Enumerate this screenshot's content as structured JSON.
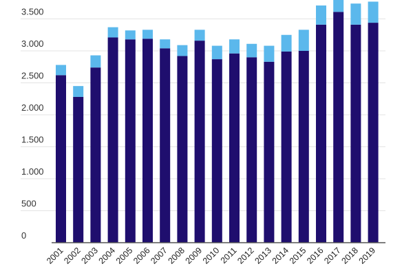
{
  "chart_data": {
    "type": "bar",
    "stacked": true,
    "categories": [
      "2001",
      "2002",
      "2003",
      "2004",
      "2005",
      "2006",
      "2007",
      "2008",
      "2009",
      "2010",
      "2011",
      "2012",
      "2013",
      "2014",
      "2015",
      "2016",
      "2017",
      "2018",
      "2019"
    ],
    "series": [
      {
        "values": [
          2620,
          2280,
          2740,
          3210,
          3180,
          3190,
          3040,
          2920,
          3160,
          2870,
          2960,
          2900,
          2830,
          2990,
          3000,
          3410,
          3610,
          3410,
          3440
        ],
        "color": "#1f0e6e"
      },
      {
        "values": [
          160,
          170,
          190,
          160,
          140,
          140,
          140,
          170,
          170,
          210,
          220,
          210,
          250,
          260,
          330,
          300,
          310,
          330,
          330
        ],
        "color": "#5bb8ec"
      }
    ],
    "yticks": [
      0,
      500,
      1000,
      1500,
      2000,
      2500,
      3000,
      3500
    ],
    "ytick_labels": [
      "0",
      "500",
      "1.000",
      "1.500",
      "2.000",
      "2.500",
      "3.000",
      "3.500"
    ],
    "ylim": [
      0,
      3700
    ],
    "grid": true,
    "legend": false
  }
}
